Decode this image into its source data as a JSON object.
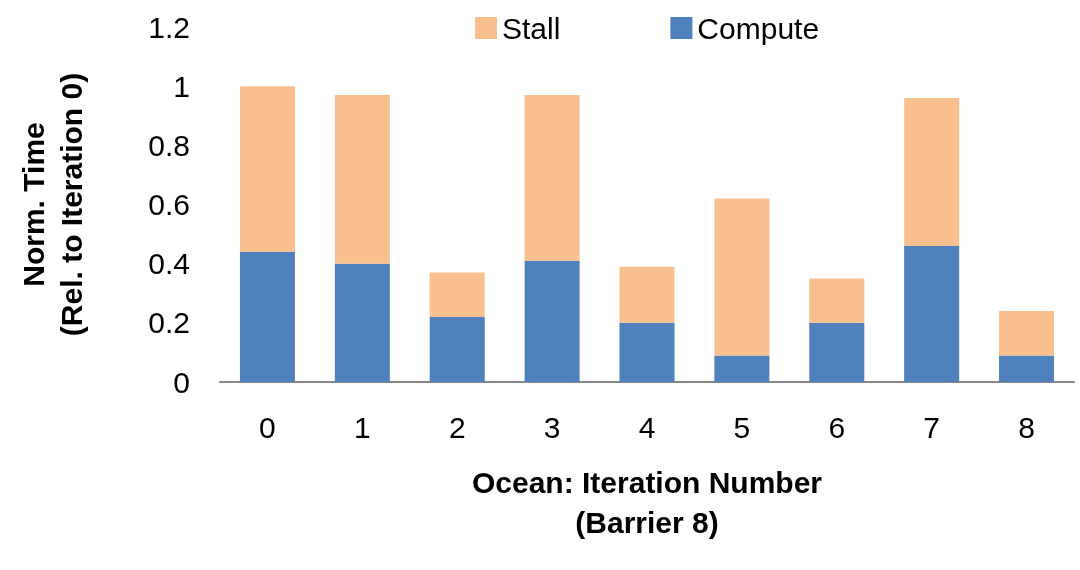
{
  "chart_data": {
    "type": "bar",
    "stacked": true,
    "xlabel": "Ocean: Iteration Number\n(Barrier 8)",
    "ylabel": "Norm. Time\n(Rel. to Iteration 0)",
    "categories": [
      "0",
      "1",
      "2",
      "3",
      "4",
      "5",
      "6",
      "7",
      "8"
    ],
    "series": [
      {
        "name": "Compute",
        "color": "#4f81bd",
        "values": [
          0.44,
          0.4,
          0.22,
          0.41,
          0.2,
          0.09,
          0.2,
          0.46,
          0.09
        ]
      },
      {
        "name": "Stall",
        "color": "#f9c08f",
        "values": [
          0.56,
          0.57,
          0.15,
          0.56,
          0.19,
          0.53,
          0.15,
          0.5,
          0.15
        ]
      }
    ],
    "ylim": [
      0,
      1.2
    ],
    "yticks": [
      0,
      0.2,
      0.4,
      0.6,
      0.8,
      1,
      1.2
    ],
    "grid": false,
    "legend": "top"
  }
}
